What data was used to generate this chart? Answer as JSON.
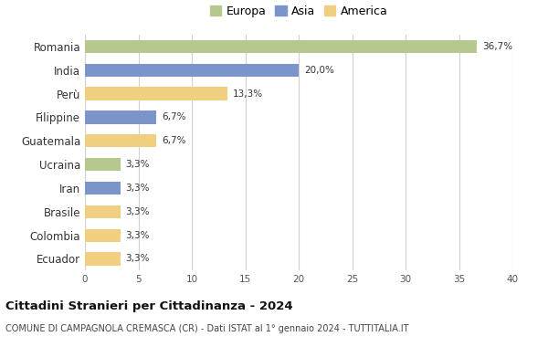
{
  "countries": [
    "Romania",
    "India",
    "Perù",
    "Filippine",
    "Guatemala",
    "Ucraina",
    "Iran",
    "Brasile",
    "Colombia",
    "Ecuador"
  ],
  "values": [
    36.7,
    20.0,
    13.3,
    6.7,
    6.7,
    3.3,
    3.3,
    3.3,
    3.3,
    3.3
  ],
  "labels": [
    "36,7%",
    "20,0%",
    "13,3%",
    "6,7%",
    "6,7%",
    "3,3%",
    "3,3%",
    "3,3%",
    "3,3%",
    "3,3%"
  ],
  "continents": [
    "Europa",
    "Asia",
    "America",
    "Asia",
    "America",
    "Europa",
    "Asia",
    "America",
    "America",
    "America"
  ],
  "colors": {
    "Europa": "#b5c98e",
    "Asia": "#7b94c9",
    "America": "#f0d080"
  },
  "legend_order": [
    "Europa",
    "Asia",
    "America"
  ],
  "xlim": [
    0,
    40
  ],
  "xticks": [
    0,
    5,
    10,
    15,
    20,
    25,
    30,
    35,
    40
  ],
  "title": "Cittadini Stranieri per Cittadinanza - 2024",
  "subtitle": "COMUNE DI CAMPAGNOLA CREMASCA (CR) - Dati ISTAT al 1° gennaio 2024 - TUTTITALIA.IT",
  "bg_color": "#ffffff",
  "grid_color": "#d0d0d0",
  "bar_height": 0.55
}
